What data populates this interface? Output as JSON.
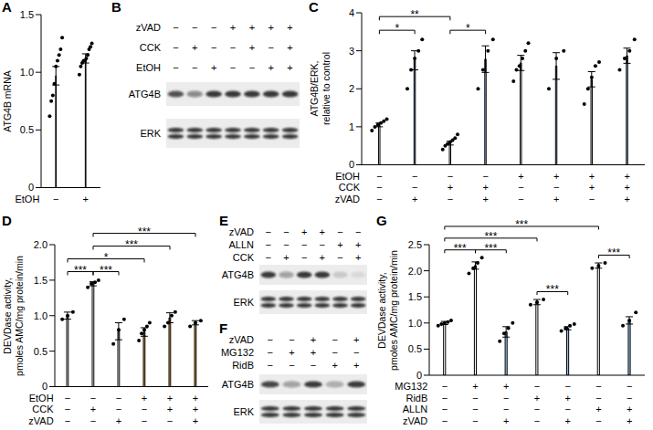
{
  "chart_data": [
    {
      "panel": "A",
      "type": "bar",
      "y_label": "ATG4B mRNA",
      "conditions": [
        {
          "name": "EtOH",
          "signs": [
            "−",
            "+"
          ]
        }
      ],
      "values": [
        0.97,
        1.12
      ],
      "errors": [
        0.08,
        0.04
      ],
      "points": [
        [
          0.62,
          0.75,
          0.8,
          0.9,
          1.05,
          1.1,
          1.15,
          1.2,
          1.3
        ],
        [
          0.98,
          1.05,
          1.08,
          1.1,
          1.1,
          1.12,
          1.15,
          1.2,
          1.22,
          1.25
        ]
      ],
      "colors": [
        "#ffffff",
        "#f7a541"
      ],
      "ylim": [
        0,
        1.5
      ],
      "yticks": [
        0,
        0.5,
        {
          "value": 1,
          "label": "1.0"
        },
        1.5
      ]
    },
    {
      "panel": "C",
      "type": "bar",
      "y_label": "ATG4B/ERK,\nrelative to control",
      "conditions": [
        {
          "name": "EtOH",
          "signs": [
            "−",
            "−",
            "−",
            "−",
            "+",
            "+",
            "+",
            "+"
          ]
        },
        {
          "name": "CCK",
          "signs": [
            "−",
            "−",
            "+",
            "+",
            "−",
            "−",
            "+",
            "+"
          ]
        },
        {
          "name": "zVAD",
          "signs": [
            "−",
            "+",
            "−",
            "+",
            "−",
            "+",
            "−",
            "+"
          ]
        }
      ],
      "values": [
        1.05,
        2.75,
        0.57,
        2.78,
        2.68,
        2.6,
        2.25,
        2.87
      ],
      "errors": [
        0.05,
        0.25,
        0.05,
        0.35,
        0.2,
        0.35,
        0.2,
        0.2
      ],
      "points": [
        [
          0.9,
          1.0,
          1.05,
          1.1,
          1.15,
          1.2
        ],
        [
          2.0,
          2.5,
          2.8,
          3.0,
          3.3
        ],
        [
          0.4,
          0.5,
          0.55,
          0.6,
          0.65,
          0.7,
          0.8
        ],
        [
          2.0,
          2.5,
          3.0,
          3.3
        ],
        [
          2.2,
          2.5,
          2.6,
          2.8,
          3.0,
          3.2
        ],
        [
          2.0,
          2.8,
          3.0
        ],
        [
          1.6,
          2.0,
          2.3,
          2.6,
          2.7
        ],
        [
          2.5,
          2.8,
          3.0,
          3.3
        ]
      ],
      "colors": [
        "#ffffff",
        "#9ec5ee",
        "#ffffff",
        "#9ec5ee",
        "#ffffff",
        "#9ec5ee",
        "#ffffff",
        "#9ec5ee"
      ],
      "ylim": [
        0,
        4
      ],
      "yticks": [
        0,
        1,
        2,
        3,
        4
      ],
      "brackets": [
        {
          "from": 0,
          "to": 1,
          "label": "*"
        },
        {
          "from": 2,
          "to": 3,
          "label": "*"
        },
        {
          "from": 0,
          "to": 2,
          "label": "**"
        }
      ]
    },
    {
      "panel": "D",
      "type": "bar",
      "y_label": "DEVDase activity,\npmoles AMC/mg protein/min",
      "conditions": [
        {
          "name": "EtOH",
          "signs": [
            "−",
            "−",
            "−",
            "+",
            "+",
            "+"
          ]
        },
        {
          "name": "CCK",
          "signs": [
            "−",
            "+",
            "−",
            "−",
            "+",
            "+"
          ]
        },
        {
          "name": "zVAD",
          "signs": [
            "−",
            "−",
            "+",
            "−",
            "−",
            "+"
          ]
        }
      ],
      "values": [
        1.0,
        1.45,
        0.78,
        0.77,
        0.97,
        0.9
      ],
      "errors": [
        0.05,
        0.03,
        0.12,
        0.06,
        0.07,
        0.03
      ],
      "points": [
        [
          0.95,
          1.0,
          1.05
        ],
        [
          1.4,
          1.45,
          1.47,
          1.5
        ],
        [
          0.6,
          0.8,
          0.95
        ],
        [
          0.65,
          0.75,
          0.8,
          0.85,
          0.9
        ],
        [
          0.85,
          0.9,
          1.0,
          1.05
        ],
        [
          0.85,
          0.9,
          0.93
        ]
      ],
      "colors": [
        "#ffffff",
        "#ffffff",
        "#ffffff",
        "#f7a541",
        "#f7a541",
        "#f7a541"
      ],
      "ylim": [
        0,
        2
      ],
      "yticks": [
        0,
        0.5,
        {
          "value": 1,
          "label": "1.0"
        },
        1.5,
        {
          "value": 2,
          "label": "2.0"
        }
      ],
      "brackets": [
        {
          "from": 0,
          "to": 1,
          "label": "***"
        },
        {
          "from": 1,
          "to": 2,
          "label": "***"
        },
        {
          "from": 0,
          "to": 3,
          "label": "*"
        },
        {
          "from": 1,
          "to": 4,
          "label": "***"
        },
        {
          "from": 1,
          "to": 5,
          "label": "***"
        }
      ]
    },
    {
      "panel": "G",
      "type": "bar",
      "y_label": "DEVDase activity,\npmoles AMC/mg protein/min",
      "conditions": [
        {
          "name": "MG132",
          "signs": [
            "−",
            "+",
            "+",
            "−",
            "−",
            "−",
            "−"
          ]
        },
        {
          "name": "RidB",
          "signs": [
            "−",
            "−",
            "−",
            "+",
            "+",
            "−",
            "−"
          ]
        },
        {
          "name": "ALLN",
          "signs": [
            "−",
            "−",
            "−",
            "−",
            "−",
            "+",
            "+"
          ]
        },
        {
          "name": "zVAD",
          "signs": [
            "−",
            "−",
            "+",
            "−",
            "+",
            "−",
            "+"
          ]
        }
      ],
      "values": [
        1.0,
        2.1,
        0.83,
        1.4,
        0.9,
        2.1,
        1.05
      ],
      "errors": [
        0.03,
        0.07,
        0.1,
        0.05,
        0.03,
        0.05,
        0.07
      ],
      "points": [
        [
          0.95,
          0.98,
          1.0,
          1.02,
          1.05
        ],
        [
          1.95,
          2.05,
          2.15,
          2.25
        ],
        [
          0.65,
          0.8,
          0.9,
          1.0
        ],
        [
          1.35,
          1.4,
          1.45
        ],
        [
          0.85,
          0.9,
          0.95,
          0.98
        ],
        [
          2.05,
          2.1,
          2.15
        ],
        [
          0.95,
          1.05,
          1.2
        ]
      ],
      "colors": [
        "#ffffff",
        "#ffffff",
        "#9ec5ee",
        "#ffffff",
        "#9ec5ee",
        "#ffffff",
        "#9ec5ee"
      ],
      "ylim": [
        0,
        2.5
      ],
      "yticks": [
        0,
        0.5,
        {
          "value": 1,
          "label": "1.0"
        },
        1.5,
        {
          "value": 2,
          "label": "2.0"
        },
        2.5
      ],
      "brackets": [
        {
          "from": 0,
          "to": 1,
          "label": "***"
        },
        {
          "from": 1,
          "to": 2,
          "label": "***"
        },
        {
          "from": 3,
          "to": 4,
          "label": "***"
        },
        {
          "from": 5,
          "to": 6,
          "label": "***"
        },
        {
          "from": 0,
          "to": 3,
          "label": "***"
        },
        {
          "from": 0,
          "to": 5,
          "label": "***"
        }
      ]
    }
  ],
  "blots": [
    {
      "panel": "B",
      "conditions": [
        {
          "name": "zVAD",
          "signs": [
            "−",
            "−",
            "−",
            "+",
            "+",
            "+",
            "+"
          ]
        },
        {
          "name": "CCK",
          "signs": [
            "−",
            "+",
            "−",
            "−",
            "+",
            "−",
            "+"
          ]
        },
        {
          "name": "EtOH",
          "signs": [
            "−",
            "−",
            "+",
            "−",
            "−",
            "+",
            "+"
          ]
        }
      ],
      "bands": [
        {
          "name": "ATG4B",
          "intensity": [
            0.7,
            0.45,
            0.85,
            0.85,
            0.85,
            0.85,
            0.85
          ]
        },
        {
          "name": "ERK",
          "intensity": [
            0.85,
            0.85,
            0.85,
            0.85,
            0.85,
            0.85,
            0.85
          ]
        }
      ]
    },
    {
      "panel": "E",
      "conditions": [
        {
          "name": "zVAD",
          "signs": [
            "−",
            "−",
            "+",
            "+",
            "−",
            "−"
          ]
        },
        {
          "name": "ALLN",
          "signs": [
            "−",
            "−",
            "−",
            "−",
            "+",
            "+"
          ]
        },
        {
          "name": "CCK",
          "signs": [
            "−",
            "+",
            "−",
            "+",
            "−",
            "+"
          ]
        }
      ],
      "bands": [
        {
          "name": "ATG4B",
          "intensity": [
            0.8,
            0.35,
            0.85,
            0.85,
            0.15,
            0.08
          ]
        },
        {
          "name": "ERK",
          "intensity": [
            0.85,
            0.85,
            0.85,
            0.85,
            0.85,
            0.85
          ]
        }
      ]
    },
    {
      "panel": "F",
      "conditions": [
        {
          "name": "zVAD",
          "signs": [
            "−",
            "−",
            "+",
            "−",
            "+"
          ]
        },
        {
          "name": "MG132",
          "signs": [
            "−",
            "+",
            "+",
            "−",
            "−"
          ]
        },
        {
          "name": "RidB",
          "signs": [
            "−",
            "−",
            "−",
            "+",
            "+"
          ]
        }
      ],
      "bands": [
        {
          "name": "ATG4B",
          "intensity": [
            0.75,
            0.35,
            0.8,
            0.3,
            0.8
          ]
        },
        {
          "name": "ERK",
          "intensity": [
            0.85,
            0.85,
            0.85,
            0.85,
            0.85
          ]
        }
      ]
    }
  ]
}
